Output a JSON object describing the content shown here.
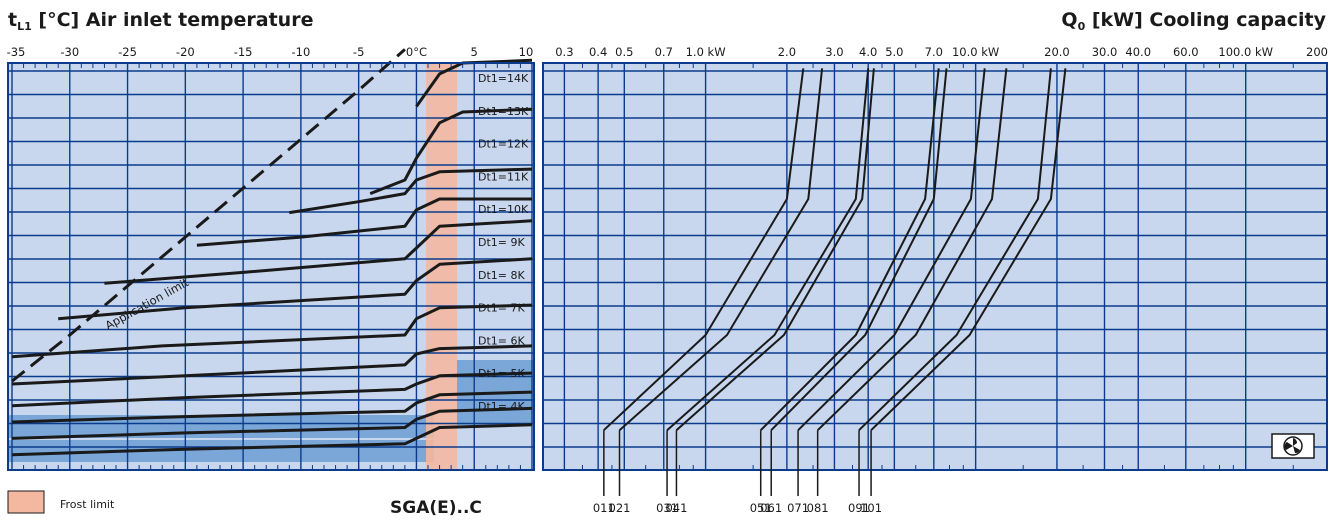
{
  "titles": {
    "left_main": "t",
    "left_sub": "L1",
    "left_rest": " [°C] Air inlet temperature",
    "right_main": "Q",
    "right_sub": "0",
    "right_rest": " [kW] Cooling capacity"
  },
  "product": "SGA(E)..C",
  "legend": {
    "label": "Frost limit",
    "color": "#f4b8a0"
  },
  "annotation": "Application limit",
  "colors": {
    "plot_bg": "#c9d7ee",
    "grid": "#0b3c8c",
    "band": "#7aa6d8",
    "frost": "#f4b8a0",
    "curve": "#1a1a1a"
  },
  "fan_icon": "fan-icon",
  "chart_data": [
    {
      "type": "line",
      "title": "[°C] Air inlet temperature",
      "xlabel": "t L1 [°C]",
      "xlim": [
        -35,
        10
      ],
      "x_ticks": [
        "-35",
        "-30",
        "-25",
        "-20",
        "-15",
        "-10",
        "-5",
        "0°C",
        "5",
        "10"
      ],
      "frost_limit_range": [
        0,
        3
      ],
      "series": [
        {
          "name": "Dt1=14K",
          "points": [
            [
              0,
              13.4
            ],
            [
              2,
              14.6
            ],
            [
              4,
              15.0
            ],
            [
              10,
              15.1
            ]
          ]
        },
        {
          "name": "Dt1=13K",
          "points": [
            [
              -4,
              10.2
            ],
            [
              -1,
              10.7
            ],
            [
              0,
              11.5
            ],
            [
              2,
              12.8
            ],
            [
              4,
              13.2
            ],
            [
              10,
              13.3
            ]
          ]
        },
        {
          "name": "Dt1=12K",
          "points": [
            [
              -11,
              9.5
            ],
            [
              -5,
              9.9
            ],
            [
              -1,
              10.2
            ],
            [
              0,
              10.7
            ],
            [
              2,
              11.0
            ],
            [
              10,
              11.1
            ]
          ]
        },
        {
          "name": "Dt1=11K",
          "points": [
            [
              -19,
              8.3
            ],
            [
              -10,
              8.6
            ],
            [
              -1,
              9.0
            ],
            [
              0,
              9.6
            ],
            [
              2,
              10.0
            ],
            [
              10,
              10.0
            ]
          ]
        },
        {
          "name": "Dt1=10K",
          "points": [
            [
              -27,
              6.9
            ],
            [
              -15,
              7.3
            ],
            [
              -1,
              7.8
            ],
            [
              0,
              8.2
            ],
            [
              2,
              9.0
            ],
            [
              10,
              9.2
            ]
          ]
        },
        {
          "name": "Dt1=9K",
          "points": [
            [
              -31,
              5.6
            ],
            [
              -20,
              6.0
            ],
            [
              -1,
              6.5
            ],
            [
              0,
              7.0
            ],
            [
              2,
              7.6
            ],
            [
              10,
              7.8
            ]
          ]
        },
        {
          "name": "Dt1=8K",
          "points": [
            [
              -35,
              4.2
            ],
            [
              -22,
              4.6
            ],
            [
              -1,
              5.0
            ],
            [
              0,
              5.6
            ],
            [
              2,
              6.0
            ],
            [
              10,
              6.1
            ]
          ]
        },
        {
          "name": "Dt1=7K",
          "points": [
            [
              -35,
              3.2
            ],
            [
              -20,
              3.5
            ],
            [
              -1,
              3.9
            ],
            [
              0,
              4.3
            ],
            [
              2,
              4.5
            ],
            [
              10,
              4.6
            ]
          ]
        },
        {
          "name": "Dt1=6K",
          "points": [
            [
              -35,
              2.4
            ],
            [
              -20,
              2.7
            ],
            [
              -1,
              3.0
            ],
            [
              0,
              3.2
            ],
            [
              2,
              3.5
            ],
            [
              10,
              3.6
            ]
          ]
        }
      ],
      "application_limit": [
        [
          -35,
          3.3
        ],
        [
          -30,
          5.0
        ],
        [
          -25,
          6.8
        ],
        [
          -20,
          8.6
        ],
        [
          -15,
          10.4
        ],
        [
          -10,
          12.2
        ],
        [
          -5,
          14.0
        ],
        [
          -1,
          15.5
        ]
      ]
    },
    {
      "type": "line",
      "title": "[kW] Cooling capacity",
      "xlabel": "Q 0 [kW]",
      "x_scale": "log",
      "x_ticks": [
        "0.3",
        "0.4",
        "0.5",
        "0.7",
        "1.0 kW",
        "2.0",
        "3.0",
        "4.0",
        "5.0",
        "7.0",
        "10.0 kW",
        "20.0",
        "30.0",
        "40.0",
        "60.0",
        "100.0 kW",
        "200"
      ],
      "series": [
        {
          "name": "011",
          "points": [
            [
              0.42,
              1.5
            ],
            [
              1.0,
              5.0
            ],
            [
              2.0,
              10.0
            ],
            [
              2.3,
              14.8
            ]
          ]
        },
        {
          "name": "021",
          "points": [
            [
              0.48,
              1.5
            ],
            [
              1.2,
              5.0
            ],
            [
              2.4,
              10.0
            ],
            [
              2.7,
              14.8
            ]
          ]
        },
        {
          "name": "031",
          "points": [
            [
              0.72,
              1.5
            ],
            [
              1.8,
              5.0
            ],
            [
              3.6,
              10.0
            ],
            [
              4.0,
              14.8
            ]
          ]
        },
        {
          "name": "041",
          "points": [
            [
              0.78,
              1.5
            ],
            [
              1.95,
              5.0
            ],
            [
              3.8,
              10.0
            ],
            [
              4.2,
              14.8
            ]
          ]
        },
        {
          "name": "051",
          "points": [
            [
              1.6,
              1.5
            ],
            [
              3.6,
              5.0
            ],
            [
              6.5,
              10.0
            ],
            [
              7.3,
              14.8
            ]
          ]
        },
        {
          "name": "061",
          "points": [
            [
              1.75,
              1.5
            ],
            [
              3.9,
              5.0
            ],
            [
              7.0,
              10.0
            ],
            [
              7.8,
              14.8
            ]
          ]
        },
        {
          "name": "071",
          "points": [
            [
              2.2,
              1.5
            ],
            [
              5.0,
              5.0
            ],
            [
              9.6,
              10.0
            ],
            [
              10.8,
              14.8
            ]
          ]
        },
        {
          "name": "081",
          "points": [
            [
              2.6,
              1.5
            ],
            [
              6.0,
              5.0
            ],
            [
              11.5,
              10.0
            ],
            [
              13.0,
              14.8
            ]
          ]
        },
        {
          "name": "091",
          "points": [
            [
              3.7,
              1.5
            ],
            [
              8.5,
              5.0
            ],
            [
              17.0,
              10.0
            ],
            [
              19.0,
              14.8
            ]
          ]
        },
        {
          "name": "101",
          "points": [
            [
              4.1,
              1.5
            ],
            [
              9.5,
              5.0
            ],
            [
              19.0,
              10.0
            ],
            [
              21.5,
              14.8
            ]
          ]
        }
      ]
    }
  ]
}
